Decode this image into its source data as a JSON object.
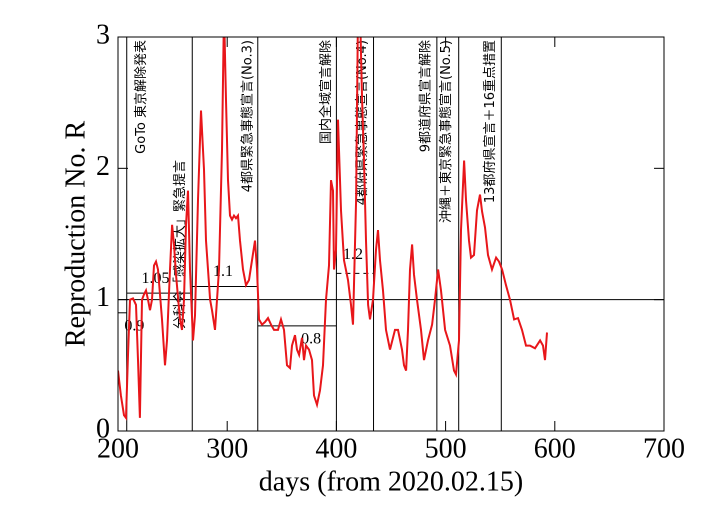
{
  "chart_data": {
    "type": "line",
    "xlabel": "days   (from 2020.02.15)",
    "ylabel": "Reproduction No.  R",
    "xlim": [
      200,
      700
    ],
    "ylim": [
      0,
      3
    ],
    "xticks": [
      200,
      300,
      400,
      500,
      600,
      700
    ],
    "yticks": [
      0,
      1,
      2,
      3
    ],
    "hline": 1,
    "series": [
      {
        "color": "#e8161a",
        "x": [
          200,
          202.7,
          205.5,
          207.3,
          209.2,
          211,
          213.7,
          216.5,
          218.3,
          220.1,
          222,
          223.8,
          225.6,
          227.5,
          229.3,
          231.1,
          233,
          234.8,
          236.6,
          240.3,
          243,
          244.9,
          247.6,
          249.5,
          251.3,
          253.1,
          256.8,
          258.6,
          260.4,
          262.3,
          264.1,
          265.9,
          268.7,
          270.5,
          273.3,
          276,
          278.8,
          280.6,
          284.3,
          286.1,
          288.8,
          292.5,
          295.2,
          297.1,
          298.9,
          300.7,
          302.6,
          304.4,
          306.2,
          308.1,
          309.9,
          311.7,
          314.5,
          317.2,
          320,
          322.7,
          325.5,
          327.3,
          329.1,
          331.9,
          334.6,
          337.4,
          340.1,
          342.9,
          346.5,
          349.3,
          352,
          354.8,
          357.5,
          359.3,
          362.1,
          363.9,
          365.8,
          368.5,
          370.3,
          372.2,
          374.9,
          377.7,
          379.5,
          382.2,
          385,
          387.7,
          390.5,
          393.2,
          395.1,
          396.9,
          397.8,
          399.6,
          401.5,
          402.4,
          404.2,
          407,
          410.6,
          413.4,
          415.2,
          418,
          419.8,
          421.6,
          423.5,
          425.3,
          427.1,
          429,
          430.8,
          433.5,
          436.3,
          438.1,
          439.9,
          442.7,
          445.4,
          449.1,
          453.7,
          456.4,
          460.1,
          461.9,
          463.8,
          465.6,
          467.4,
          469.3,
          471.1,
          473.8,
          477.5,
          480.2,
          483.9,
          487.6,
          490.3,
          493.1,
          495.8,
          499.5,
          504,
          507.7,
          509.5,
          512.3,
          514.1,
          516.9,
          518.7,
          521.4,
          523.3,
          526,
          528.8,
          531.5,
          533.4,
          536.1,
          538.8,
          542.5,
          546.2,
          548.9,
          551.7,
          555.3,
          559,
          562.7,
          566.3,
          570,
          573.6,
          577.3,
          581.9,
          586.5,
          589.2,
          591,
          592.9
        ],
        "values": [
          0.46,
          0.27,
          0.12,
          0.1,
          0.58,
          1.0,
          1.01,
          0.96,
          0.54,
          0.1,
          1.0,
          1.04,
          1.07,
          1.0,
          0.92,
          1.0,
          1.26,
          1.29,
          1.23,
          0.85,
          0.5,
          0.69,
          1.23,
          1.57,
          1.42,
          1.19,
          0.85,
          0.77,
          1.0,
          1.57,
          1.83,
          1.23,
          0.69,
          0.88,
          1.76,
          2.44,
          1.99,
          1.45,
          1.0,
          0.92,
          0.77,
          1.23,
          2.14,
          3.2,
          2.52,
          1.91,
          1.64,
          1.61,
          1.64,
          1.62,
          1.64,
          1.45,
          1.23,
          1.11,
          1.15,
          1.3,
          1.45,
          1.23,
          0.85,
          0.81,
          0.83,
          0.86,
          0.81,
          0.77,
          0.77,
          0.85,
          0.77,
          0.5,
          0.48,
          0.65,
          0.73,
          0.62,
          0.58,
          0.71,
          0.54,
          0.65,
          0.62,
          0.54,
          0.27,
          0.2,
          0.31,
          0.5,
          1.0,
          1.26,
          1.91,
          1.83,
          1.23,
          1.38,
          2.37,
          2.14,
          1.68,
          1.3,
          1.15,
          0.96,
          0.81,
          1.76,
          3.2,
          3.2,
          2.52,
          2.06,
          1.45,
          0.96,
          0.85,
          1.0,
          1.38,
          1.53,
          1.3,
          1.07,
          0.77,
          0.62,
          0.77,
          0.77,
          0.62,
          0.5,
          0.46,
          0.77,
          1.23,
          1.42,
          1.19,
          1.0,
          0.77,
          0.54,
          0.69,
          0.81,
          1.0,
          1.23,
          1.07,
          0.77,
          0.65,
          0.46,
          0.43,
          0.69,
          1.53,
          2.06,
          1.76,
          1.45,
          1.32,
          1.34,
          1.68,
          1.8,
          1.67,
          1.55,
          1.34,
          1.23,
          1.32,
          1.29,
          1.23,
          1.11,
          1.0,
          0.85,
          0.86,
          0.77,
          0.65,
          0.65,
          0.63,
          0.69,
          0.65,
          0.54,
          0.75
        ]
      }
    ],
    "reference_levels": [
      {
        "value": 0.9,
        "x": [
          200,
          208
        ]
      },
      {
        "value": 1.05,
        "x": [
          208,
          268
        ]
      },
      {
        "value": 1.1,
        "x": [
          268,
          328
        ]
      },
      {
        "value": 0.8,
        "x": [
          328,
          400
        ]
      },
      {
        "value": 1.2,
        "x": [
          400,
          434
        ],
        "style": "dashed"
      }
    ],
    "events": [
      {
        "day": 208,
        "label": "GoTo 東京解除発表"
      },
      {
        "day": 268,
        "label": "分科会「感染拡大」緊急提言"
      },
      {
        "day": 328,
        "label": "4都県緊急事態宣言(No.3)"
      },
      {
        "day": 400,
        "label": "国内全域宣言解除"
      },
      {
        "day": 434,
        "label": "4都府県緊急事態宣言(No.4)"
      },
      {
        "day": 492,
        "label": "9都道府県宣言解除"
      },
      {
        "day": 512,
        "label": "沖縄＋東京緊急事態宣言(No.5)"
      },
      {
        "day": 551,
        "label": "13都府県宣言＋16重点措置"
      }
    ]
  }
}
